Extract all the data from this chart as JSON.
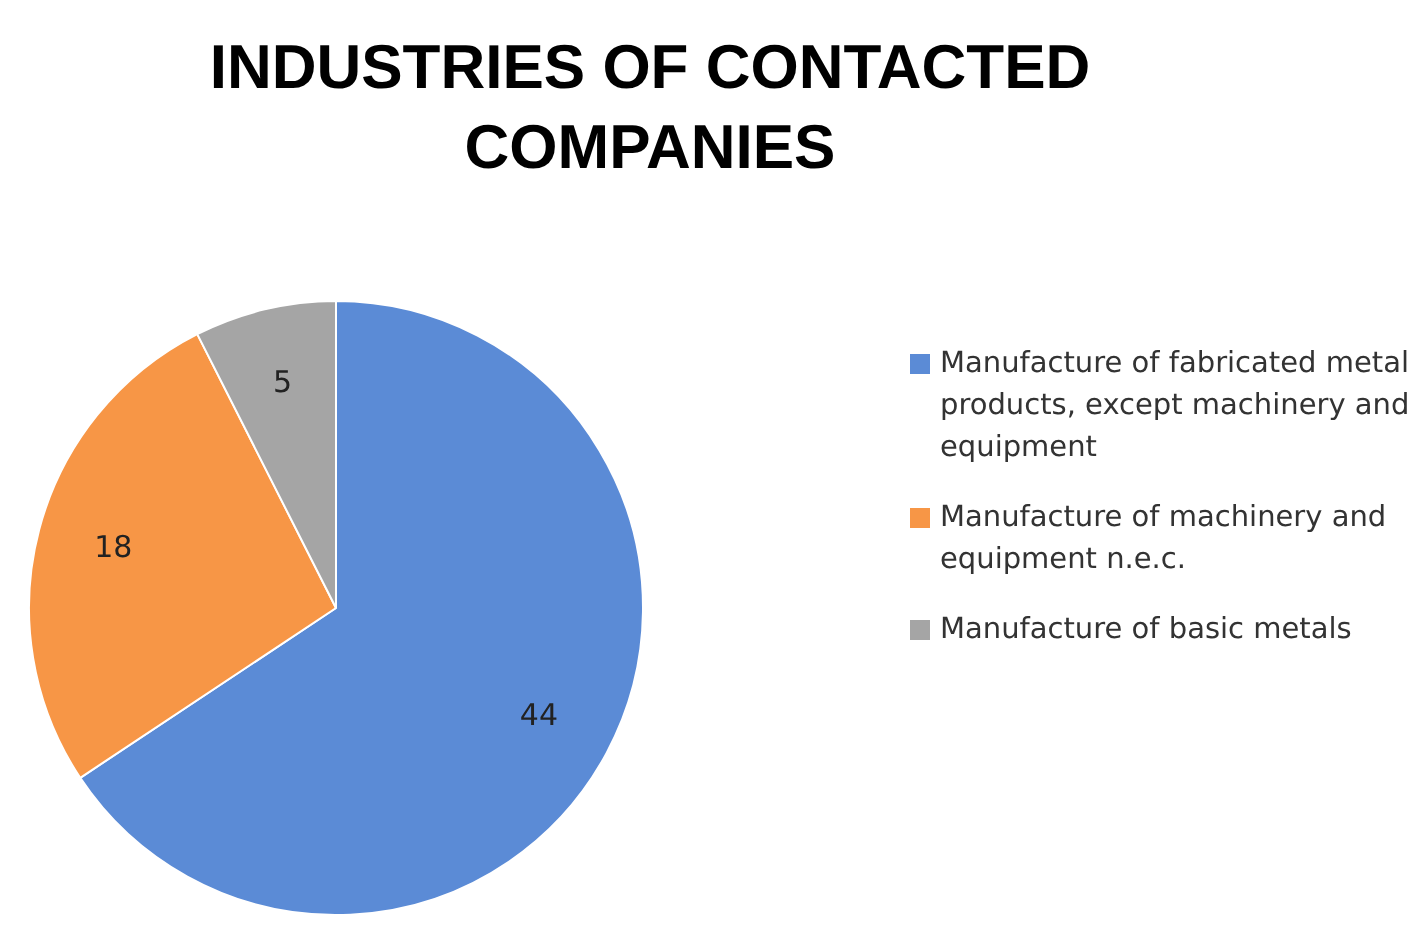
{
  "chart_data": {
    "type": "pie",
    "title": "INDUSTRIES OF CONTACTED COMPANIES",
    "categories": [
      "Manufacture of fabricated metal products, except machinery and equipment",
      "Manufacture of machinery and equipment n.e.c.",
      "Manufacture of basic metals"
    ],
    "values": [
      44,
      18,
      5
    ],
    "colors": [
      "#5b8bd6",
      "#f79646",
      "#a5a5a5"
    ],
    "data_labels": true,
    "legend": "right"
  }
}
